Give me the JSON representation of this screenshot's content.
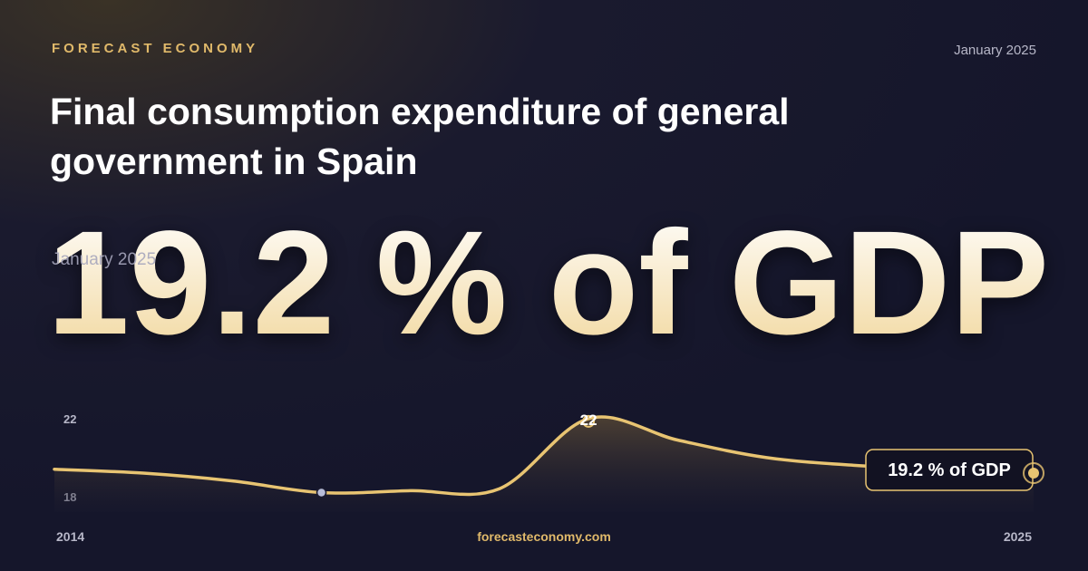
{
  "brand": "FORECAST ECONOMY",
  "date": "January 2025",
  "footer": "forecasteconomy.com",
  "chart_data": {
    "type": "line",
    "title": "Final consumption expenditure of general government in Spain",
    "headline": "19.2 % of GDP",
    "x": [
      2014,
      2015,
      2016,
      2017,
      2018,
      2019,
      2020,
      2021,
      2022,
      2023,
      2024,
      2025
    ],
    "series": [
      {
        "color": "#e8c472",
        "values": [
          19.4,
          19.2,
          18.8,
          18.2,
          18.3,
          18.4,
          22,
          20.9,
          20.0,
          19.6,
          19.4,
          19.2
        ],
        "value_labels": [
          null,
          null,
          null,
          null,
          null,
          null,
          "22",
          null,
          null,
          null,
          null,
          "19.2 % of GDP"
        ]
      }
    ],
    "xlim": [
      2014,
      2025
    ],
    "xticks": [
      2014,
      2025
    ],
    "ylim": [
      17.2,
      22.6
    ],
    "yticks": [
      18,
      22
    ]
  }
}
